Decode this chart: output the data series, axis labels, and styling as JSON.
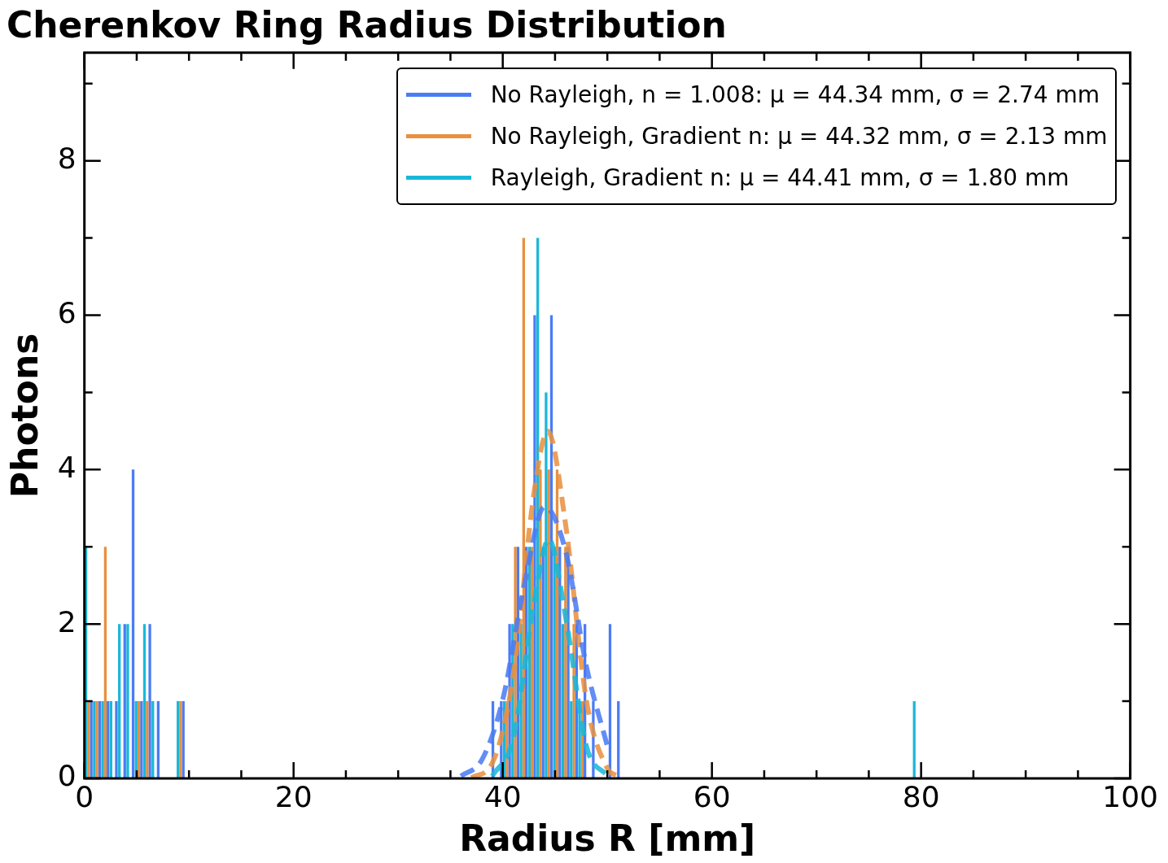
{
  "chart_data": {
    "type": "histogram",
    "title": "Cherenkov Ring Radius Distribution",
    "xlabel": "Radius R [mm]",
    "ylabel": "Photons",
    "bins": [
      0,
      0.8,
      1.6,
      2.4,
      3.2,
      4,
      4.8,
      5.6,
      6.4,
      7.2,
      8,
      8.8,
      9.6,
      10.4,
      11.2,
      12,
      12.8,
      13.6,
      14.4,
      15.2,
      16,
      16.8,
      17.6,
      18.4,
      19.2,
      20,
      20.8,
      21.6,
      22.4,
      23.2,
      24,
      24.8,
      25.6,
      26.4,
      27.2,
      28,
      28.8,
      29.6,
      30.4,
      31.2,
      32,
      32.8,
      33.6,
      34.4,
      35.2,
      36,
      36.8,
      37.6,
      38.4,
      39.2,
      40,
      40.8,
      41.6,
      42.4,
      43.2,
      44,
      44.8,
      45.6,
      46.4,
      47.2,
      48,
      48.8,
      49.6,
      50.4,
      51.2,
      52,
      52.8,
      53.6,
      54.4,
      55.2,
      56,
      56.8,
      57.6,
      58.4,
      59.2,
      60,
      60.8,
      61.6,
      62.4,
      63.2,
      64,
      64.8,
      65.6,
      66.4,
      67.2,
      68,
      68.8,
      69.6,
      70.4,
      71.2,
      72,
      72.8,
      73.6,
      74.4,
      75.2,
      76,
      76.8,
      77.6,
      78.4,
      79.2,
      80
    ],
    "series": [
      {
        "name": "No Rayleigh, n = 1.008: μ = 44.34 mm, σ = 2.74 mm",
        "color": "#4a7cf5",
        "values": [
          1,
          1,
          1,
          1,
          2,
          4,
          1,
          2,
          1,
          0,
          0,
          1,
          0,
          0,
          0,
          0,
          0,
          0,
          0,
          0,
          0,
          0,
          0,
          0,
          0,
          0,
          0,
          0,
          0,
          0,
          0,
          0,
          0,
          0,
          0,
          0,
          0,
          0,
          0,
          0,
          0,
          0,
          0,
          0,
          0,
          0,
          0,
          0,
          1,
          1,
          2,
          3,
          3,
          6,
          3,
          6,
          3,
          3,
          2,
          2,
          1,
          0,
          2,
          1,
          0,
          0,
          0,
          0,
          0,
          0,
          0,
          0,
          0,
          0,
          0,
          0,
          0,
          0,
          0,
          0,
          0,
          0,
          0,
          0,
          0,
          0,
          0,
          0,
          0,
          0,
          0,
          0,
          0,
          0,
          0,
          0,
          0,
          0,
          0,
          0
        ]
      },
      {
        "name": "No Rayleigh, Gradient n: μ = 44.32 mm, σ = 2.13 mm",
        "color": "#e8903f",
        "values": [
          1,
          1,
          3,
          0,
          0,
          0,
          1,
          1,
          0,
          0,
          0,
          1,
          0,
          0,
          0,
          0,
          0,
          0,
          0,
          0,
          0,
          0,
          0,
          0,
          0,
          0,
          0,
          0,
          0,
          0,
          0,
          0,
          0,
          0,
          0,
          0,
          0,
          0,
          0,
          0,
          0,
          0,
          0,
          0,
          0,
          0,
          0,
          0,
          0,
          0,
          1,
          3,
          7,
          3,
          4,
          4,
          4,
          3,
          2,
          1,
          0,
          0,
          0,
          0,
          0,
          0,
          0,
          0,
          0,
          0,
          0,
          0,
          0,
          0,
          0,
          0,
          0,
          0,
          0,
          0,
          0,
          0,
          0,
          0,
          0,
          0,
          0,
          0,
          0,
          0,
          0,
          0,
          0,
          0,
          0,
          0,
          0,
          0,
          0,
          0
        ]
      },
      {
        "name": "Rayleigh, Gradient n: μ = 44.41 mm, σ = 1.80 mm",
        "color": "#1ab8d8",
        "values": [
          3,
          1,
          1,
          1,
          2,
          2,
          1,
          2,
          1,
          0,
          0,
          1,
          0,
          0,
          0,
          0,
          0,
          0,
          0,
          0,
          0,
          0,
          0,
          0,
          0,
          0,
          0,
          0,
          0,
          0,
          0,
          0,
          0,
          0,
          0,
          0,
          0,
          0,
          0,
          0,
          0,
          0,
          0,
          0,
          0,
          0,
          0,
          0,
          0,
          0,
          1,
          2,
          2,
          3,
          7,
          5,
          3,
          2,
          1,
          1,
          0,
          0,
          0,
          0,
          0,
          0,
          0,
          0,
          0,
          0,
          0,
          0,
          0,
          0,
          0,
          0,
          0,
          0,
          0,
          0,
          0,
          0,
          0,
          0,
          0,
          0,
          0,
          0,
          0,
          0,
          0,
          0,
          0,
          0,
          0,
          0,
          0,
          0,
          0,
          1
        ]
      },
      {
        "type": "line",
        "color": "#4a7cf5",
        "line_style": "dashed",
        "x": [
          36,
          38,
          40,
          42,
          44,
          46,
          48,
          50
        ],
        "values": [
          0.03,
          0.24,
          1.02,
          2.46,
          3.52,
          2.95,
          1.45,
          0.42
        ]
      },
      {
        "type": "line",
        "color": "#e8903f",
        "line_style": "dashed",
        "x": [
          37,
          39,
          41,
          43,
          44.3,
          46,
          48,
          50,
          51
        ],
        "values": [
          0.01,
          0.2,
          1.33,
          3.71,
          4.5,
          3.3,
          1.01,
          0.13,
          0.03
        ]
      },
      {
        "type": "line",
        "color": "#1ab8d8",
        "line_style": "dashed",
        "x": [
          39,
          41,
          43,
          44.4,
          46,
          48,
          50
        ],
        "values": [
          0.03,
          0.52,
          2.28,
          3.1,
          2.1,
          0.42,
          0.03
        ]
      }
    ],
    "xlim": [
      0,
      100
    ],
    "xticks": [
      0,
      {
        "value": 5,
        "label": null
      },
      {
        "value": 10,
        "label": null
      },
      {
        "value": 15,
        "label": null
      },
      20,
      {
        "value": 25,
        "label": null
      },
      {
        "value": 30,
        "label": null
      },
      {
        "value": 35,
        "label": null
      },
      40,
      {
        "value": 45,
        "label": null
      },
      {
        "value": 50,
        "label": null
      },
      {
        "value": 55,
        "label": null
      },
      60,
      {
        "value": 65,
        "label": null
      },
      {
        "value": 70,
        "label": null
      },
      {
        "value": 75,
        "label": null
      },
      80,
      {
        "value": 85,
        "label": null
      },
      {
        "value": 90,
        "label": null
      },
      {
        "value": 95,
        "label": null
      },
      100
    ],
    "ylim": [
      0,
      9.4
    ],
    "yticks": [
      0,
      {
        "value": 1,
        "label": null
      },
      2,
      {
        "value": 3,
        "label": null
      },
      4,
      {
        "value": 5,
        "label": null
      },
      6,
      {
        "value": 7,
        "label": null
      },
      8,
      {
        "value": 9,
        "label": null
      }
    ],
    "grid": false,
    "legend": "top right"
  }
}
